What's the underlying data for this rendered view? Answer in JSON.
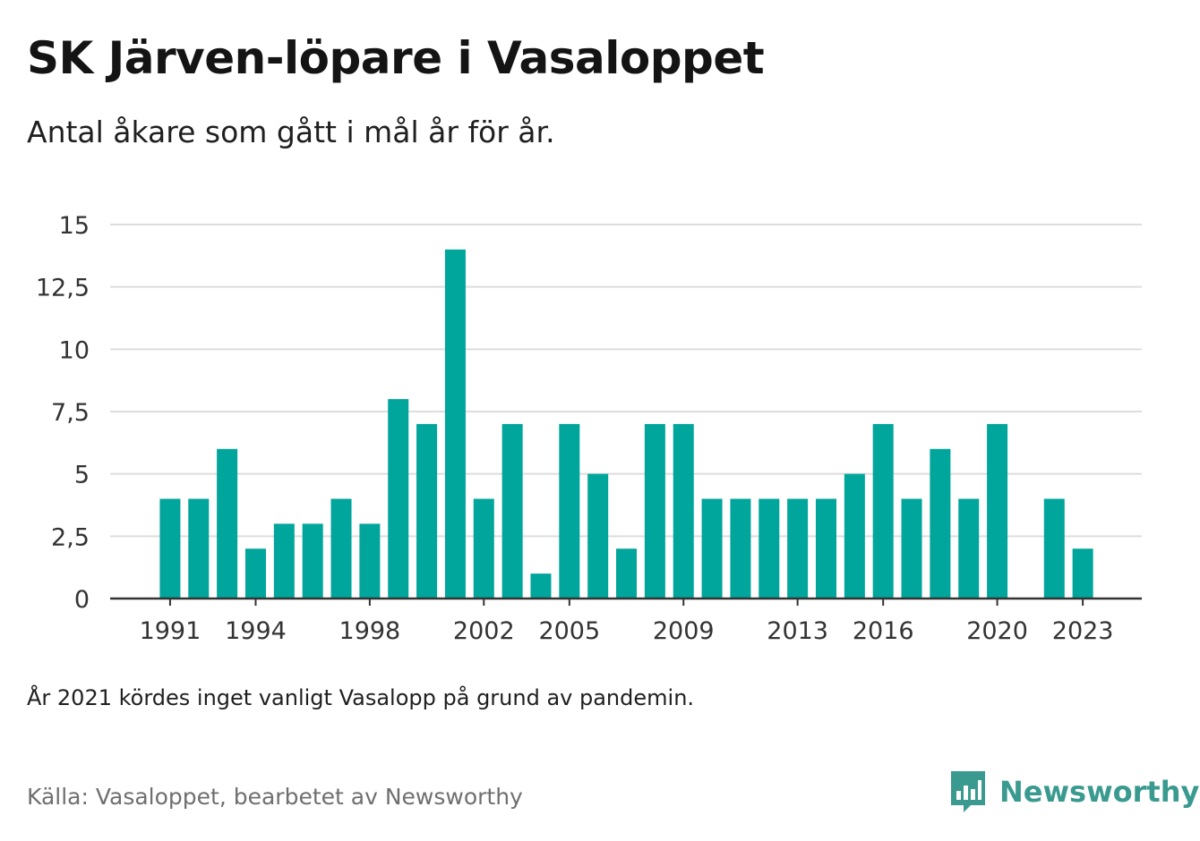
{
  "header": {
    "title": "SK Järven-löpare i Vasaloppet",
    "subtitle": "Antal åkare som gått i mål år för år."
  },
  "footer": {
    "note": "År 2021 kördes inget vanligt Vasalopp på grund av pandemin.",
    "source": "Källa: Vasaloppet, bearbetet av Newsworthy",
    "brand": "Newsworthy",
    "brand_icon": "bar-chart-speech-bubble-icon"
  },
  "colors": {
    "bar": "#00a59b",
    "grid": "#dddddd",
    "axis": "#333333",
    "brand": "#3a9a90"
  },
  "chart_data": {
    "type": "bar",
    "title": "SK Järven-löpare i Vasaloppet",
    "subtitle": "Antal åkare som gått i mål år för år.",
    "xlabel": "",
    "ylabel": "",
    "ylim": [
      0,
      15
    ],
    "grid": true,
    "legend": "none",
    "categories": [
      "1991",
      "1992",
      "1993",
      "1994",
      "1995",
      "1996",
      "1997",
      "1998",
      "1999",
      "2000",
      "2001",
      "2002",
      "2003",
      "2004",
      "2005",
      "2006",
      "2007",
      "2008",
      "2009",
      "2010",
      "2011",
      "2012",
      "2013",
      "2014",
      "2015",
      "2016",
      "2017",
      "2018",
      "2019",
      "2020",
      "2021",
      "2022",
      "2023"
    ],
    "values": [
      4,
      4,
      6,
      2,
      3,
      3,
      4,
      3,
      8,
      7,
      14,
      4,
      7,
      1,
      7,
      5,
      2,
      7,
      7,
      4,
      4,
      4,
      4,
      4,
      5,
      7,
      4,
      6,
      4,
      7,
      0,
      4,
      2
    ],
    "x_tick_labels": [
      "1991",
      "1994",
      "1998",
      "2002",
      "2005",
      "2009",
      "2013",
      "2016",
      "2020",
      "2023"
    ],
    "y_ticks": [
      {
        "value": 0,
        "label": "0"
      },
      {
        "value": 2.5,
        "label": "2,5"
      },
      {
        "value": 5,
        "label": "5"
      },
      {
        "value": 7.5,
        "label": "7,5"
      },
      {
        "value": 10,
        "label": "10"
      },
      {
        "value": 12.5,
        "label": "12,5"
      },
      {
        "value": 15,
        "label": "15"
      }
    ]
  }
}
